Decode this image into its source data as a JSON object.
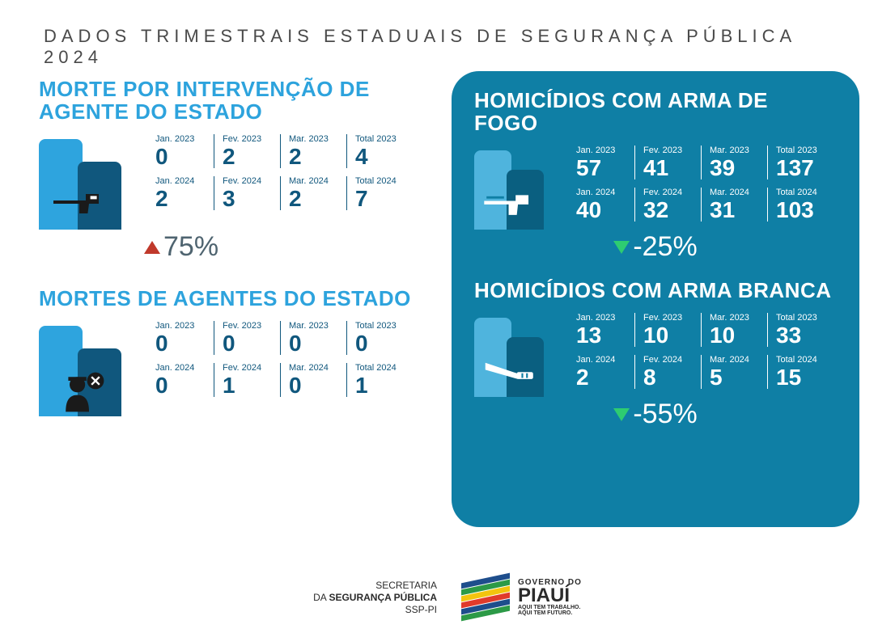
{
  "page_title": "DADOS TRIMESTRAIS ESTADUAIS DE SEGURANÇA PÚBLICA 2024",
  "colors": {
    "title_text": "#4a4a4a",
    "left_title": "#2da3dd",
    "left_stat_text": "#10577d",
    "bar_light": "#2ea4de",
    "bar_dark": "#10577d",
    "panel_bg": "#0f7fa5",
    "panel_text": "#ffffff",
    "panel_bar_light": "#4fb4dd",
    "panel_bar_dark": "#0a5f80",
    "up_triangle": "#c0392b",
    "down_triangle": "#2ecc71",
    "change_left_text": "#4f6470"
  },
  "columns": [
    "Jan.",
    "Fev.",
    "Mar.",
    "Total"
  ],
  "left": {
    "section1": {
      "title": "MORTE POR INTERVENÇÃO DE AGENTE DO ESTADO",
      "icon": "gun-hand",
      "rows": [
        {
          "year": "2023",
          "values": [
            "0",
            "2",
            "2",
            "4"
          ]
        },
        {
          "year": "2024",
          "values": [
            "2",
            "3",
            "2",
            "7"
          ]
        }
      ],
      "change": {
        "direction": "up",
        "text": "75%"
      }
    },
    "section2": {
      "title": "MORTES DE AGENTES DO ESTADO",
      "icon": "officer",
      "rows": [
        {
          "year": "2023",
          "values": [
            "0",
            "0",
            "0",
            "0"
          ]
        },
        {
          "year": "2024",
          "values": [
            "0",
            "1",
            "0",
            "1"
          ]
        }
      ],
      "change": null
    }
  },
  "right": {
    "section1": {
      "title": "HOMICÍDIOS COM ARMA DE FOGO",
      "icon": "gun",
      "rows": [
        {
          "year": "2023",
          "values": [
            "57",
            "41",
            "39",
            "137"
          ]
        },
        {
          "year": "2024",
          "values": [
            "40",
            "32",
            "31",
            "103"
          ]
        }
      ],
      "change": {
        "direction": "down",
        "text": "-25%"
      }
    },
    "section2": {
      "title": "HOMICÍDIOS COM ARMA BRANCA",
      "icon": "knife",
      "rows": [
        {
          "year": "2023",
          "values": [
            "13",
            "10",
            "10",
            "33"
          ]
        },
        {
          "year": "2024",
          "values": [
            "2",
            "8",
            "5",
            "15"
          ]
        }
      ],
      "change": {
        "direction": "down",
        "text": "-55%"
      }
    }
  },
  "footer": {
    "secretaria_line1": "SECRETARIA",
    "secretaria_line2_pre": "DA ",
    "secretaria_line2_bold": "SEGURANÇA PÚBLICA",
    "secretaria_line3": "SSP-PI",
    "gov_line1": "GOVERNO DO",
    "gov_line2": "PIAUÍ",
    "gov_line3a": "AQUI TEM TRABALHO.",
    "gov_line3b": "AQUI TEM FUTURO.",
    "flag_colors": [
      "#1e4e8c",
      "#2c9a47",
      "#f2c40e",
      "#e03b2b",
      "#1e4e8c",
      "#2c9a47"
    ]
  }
}
